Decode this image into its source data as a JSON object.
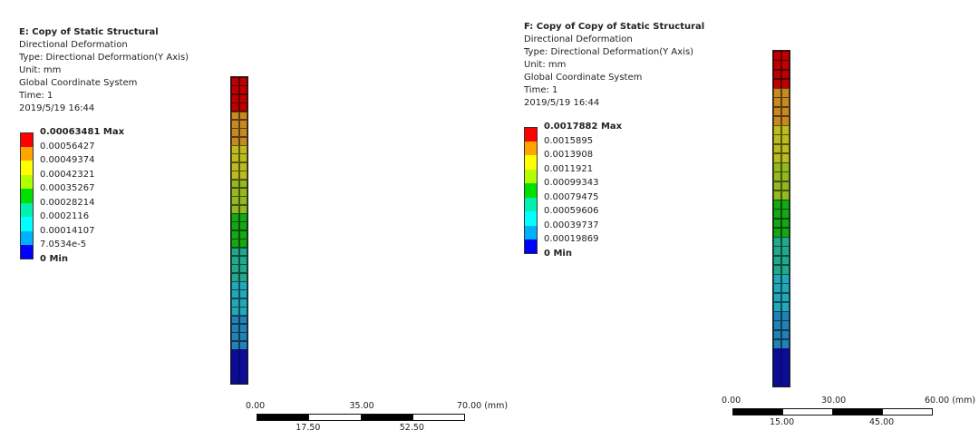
{
  "panels": [
    {
      "title": "E: Copy of Static Structural",
      "lines": [
        "Directional Deformation",
        "Type: Directional Deformation(Y Axis)",
        "Unit: mm",
        "Global Coordinate System",
        "Time: 1",
        "2019/5/19 16:44"
      ],
      "legend": [
        "0.00063481 Max",
        "0.00056427",
        "0.00049374",
        "0.00042321",
        "0.00035267",
        "0.00028214",
        "0.0002116",
        "0.00014107",
        "7.0534e-5",
        "0 Min"
      ],
      "scale": {
        "top": [
          "0.00",
          "35.00",
          "70.00 (mm)"
        ],
        "bottom": [
          "17.50",
          "52.50"
        ]
      }
    },
    {
      "title": "F: Copy of Copy of Static Structural",
      "lines": [
        "Directional Deformation",
        "Type: Directional Deformation(Y Axis)",
        "Unit: mm",
        "Global Coordinate System",
        "Time: 1",
        "2019/5/19 16:44"
      ],
      "legend": [
        "0.0017882 Max",
        "0.0015895",
        "0.0013908",
        "0.0011921",
        "0.00099343",
        "0.00079475",
        "0.00059606",
        "0.00039737",
        "0.00019869",
        "0 Min"
      ],
      "scale": {
        "top": [
          "0.00",
          "30.00",
          "60.00 (mm)"
        ],
        "bottom": [
          "15.00",
          "45.00"
        ]
      }
    }
  ],
  "colors": {
    "legend": [
      "#ff0000",
      "#ffa500",
      "#ffff00",
      "#b2ff00",
      "#00e000",
      "#00f0b0",
      "#00ffff",
      "#00b0ff",
      "#0000ff"
    ],
    "model": [
      "#c00000",
      "#c88a20",
      "#bcbc20",
      "#94b820",
      "#14a814",
      "#22a88a",
      "#22a8b8",
      "#2282b8",
      "#0c0c96"
    ]
  }
}
